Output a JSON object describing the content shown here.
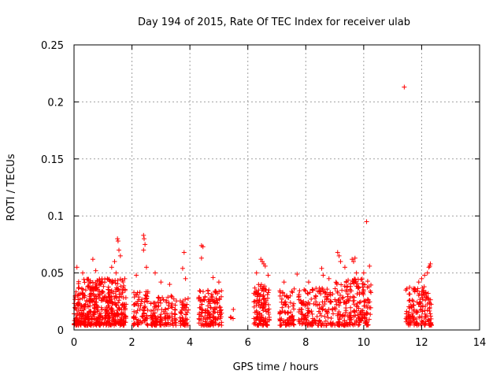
{
  "chart_data": {
    "type": "scatter",
    "title": "Day 194 of 2015, Rate Of TEC Index for receiver ulab",
    "xlabel": "GPS time / hours",
    "ylabel": "ROTI / TECUs",
    "xlim": [
      0,
      14
    ],
    "ylim": [
      0,
      0.25
    ],
    "xticks": [
      0,
      2,
      4,
      6,
      8,
      10,
      12,
      14
    ],
    "xtick_labels": [
      "0",
      "2",
      "4",
      "6",
      "8",
      "10",
      "12",
      "14"
    ],
    "yticks": [
      0,
      0.05,
      0.1,
      0.15,
      0.2,
      0.25
    ],
    "ytick_labels": [
      "0",
      "0.05",
      "0.1",
      "0.15",
      "0.2",
      "0.25"
    ],
    "grid": true,
    "marker": "+",
    "color": "#ff0000",
    "series": [
      {
        "name": "ROTI",
        "clusters": [
          {
            "x_range": [
              0.0,
              1.8
            ],
            "y_range": [
              0.004,
              0.045
            ],
            "count": 520
          },
          {
            "x_range": [
              2.05,
              2.55
            ],
            "y_range": [
              0.004,
              0.035
            ],
            "count": 80
          },
          {
            "x_range": [
              2.65,
              3.55
            ],
            "y_range": [
              0.004,
              0.03
            ],
            "count": 130
          },
          {
            "x_range": [
              3.65,
              3.95
            ],
            "y_range": [
              0.004,
              0.028
            ],
            "count": 50
          },
          {
            "x_range": [
              4.3,
              5.1
            ],
            "y_range": [
              0.004,
              0.035
            ],
            "count": 140
          },
          {
            "x_range": [
              5.4,
              5.5
            ],
            "y_range": [
              0.01,
              0.018
            ],
            "count": 3
          },
          {
            "x_range": [
              6.2,
              6.75
            ],
            "y_range": [
              0.004,
              0.04
            ],
            "count": 120
          },
          {
            "x_range": [
              7.1,
              7.6
            ],
            "y_range": [
              0.004,
              0.035
            ],
            "count": 80
          },
          {
            "x_range": [
              7.75,
              8.95
            ],
            "y_range": [
              0.004,
              0.037
            ],
            "count": 170
          },
          {
            "x_range": [
              9.0,
              10.25
            ],
            "y_range": [
              0.004,
              0.045
            ],
            "count": 220
          },
          {
            "x_range": [
              11.45,
              12.35
            ],
            "y_range": [
              0.004,
              0.038
            ],
            "count": 150
          }
        ],
        "points": [
          {
            "x": 0.1,
            "y": 0.055
          },
          {
            "x": 0.3,
            "y": 0.05
          },
          {
            "x": 0.65,
            "y": 0.062
          },
          {
            "x": 0.75,
            "y": 0.052
          },
          {
            "x": 1.15,
            "y": 0.045
          },
          {
            "x": 1.3,
            "y": 0.055
          },
          {
            "x": 1.4,
            "y": 0.06
          },
          {
            "x": 1.5,
            "y": 0.08
          },
          {
            "x": 1.52,
            "y": 0.078
          },
          {
            "x": 1.55,
            "y": 0.07
          },
          {
            "x": 1.6,
            "y": 0.065
          },
          {
            "x": 1.45,
            "y": 0.05
          },
          {
            "x": 2.15,
            "y": 0.048
          },
          {
            "x": 2.4,
            "y": 0.083
          },
          {
            "x": 2.42,
            "y": 0.08
          },
          {
            "x": 2.45,
            "y": 0.075
          },
          {
            "x": 2.4,
            "y": 0.07
          },
          {
            "x": 2.5,
            "y": 0.055
          },
          {
            "x": 2.8,
            "y": 0.05
          },
          {
            "x": 3.0,
            "y": 0.042
          },
          {
            "x": 3.3,
            "y": 0.04
          },
          {
            "x": 3.8,
            "y": 0.068
          },
          {
            "x": 3.75,
            "y": 0.054
          },
          {
            "x": 3.85,
            "y": 0.045
          },
          {
            "x": 4.4,
            "y": 0.074
          },
          {
            "x": 4.45,
            "y": 0.073
          },
          {
            "x": 4.4,
            "y": 0.063
          },
          {
            "x": 4.8,
            "y": 0.046
          },
          {
            "x": 5.0,
            "y": 0.042
          },
          {
            "x": 5.5,
            "y": 0.018
          },
          {
            "x": 6.3,
            "y": 0.05
          },
          {
            "x": 6.45,
            "y": 0.062
          },
          {
            "x": 6.5,
            "y": 0.06
          },
          {
            "x": 6.55,
            "y": 0.058
          },
          {
            "x": 6.6,
            "y": 0.056
          },
          {
            "x": 6.7,
            "y": 0.048
          },
          {
            "x": 7.25,
            "y": 0.042
          },
          {
            "x": 7.6,
            "y": 0.036
          },
          {
            "x": 7.7,
            "y": 0.049
          },
          {
            "x": 8.1,
            "y": 0.042
          },
          {
            "x": 8.55,
            "y": 0.054
          },
          {
            "x": 8.6,
            "y": 0.048
          },
          {
            "x": 8.8,
            "y": 0.045
          },
          {
            "x": 9.1,
            "y": 0.068
          },
          {
            "x": 9.15,
            "y": 0.065
          },
          {
            "x": 9.2,
            "y": 0.06
          },
          {
            "x": 9.35,
            "y": 0.055
          },
          {
            "x": 9.6,
            "y": 0.062
          },
          {
            "x": 9.65,
            "y": 0.06
          },
          {
            "x": 9.7,
            "y": 0.063
          },
          {
            "x": 9.75,
            "y": 0.05
          },
          {
            "x": 10.0,
            "y": 0.05
          },
          {
            "x": 10.1,
            "y": 0.095
          },
          {
            "x": 10.2,
            "y": 0.056
          },
          {
            "x": 11.4,
            "y": 0.213
          },
          {
            "x": 11.9,
            "y": 0.042
          },
          {
            "x": 12.0,
            "y": 0.045
          },
          {
            "x": 12.1,
            "y": 0.048
          },
          {
            "x": 12.2,
            "y": 0.05
          },
          {
            "x": 12.25,
            "y": 0.055
          },
          {
            "x": 12.3,
            "y": 0.058
          },
          {
            "x": 12.28,
            "y": 0.056
          }
        ]
      }
    ]
  }
}
